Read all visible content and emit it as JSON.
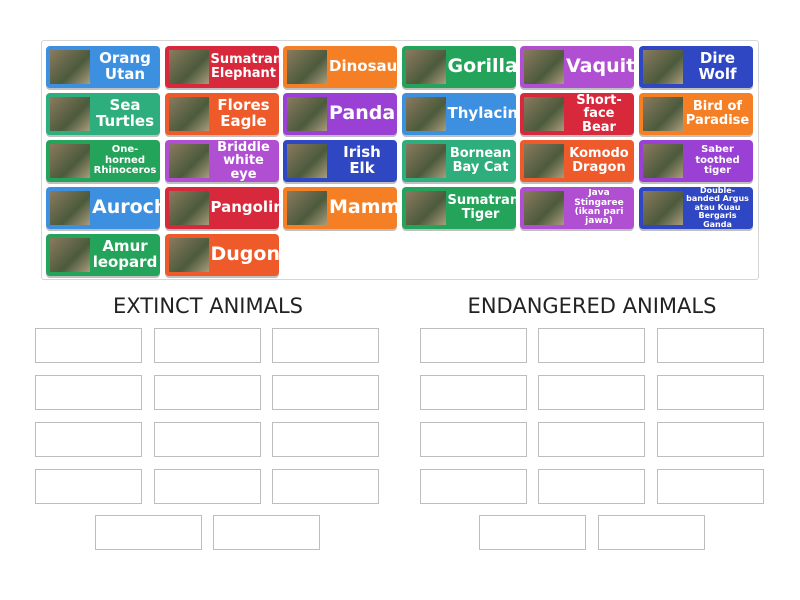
{
  "tiles": [
    {
      "label": "Orang Utan",
      "color": "#3d8fe0"
    },
    {
      "label": "Sumatran Elephant",
      "color": "#d8283c"
    },
    {
      "label": "Dinosaur",
      "color": "#f47f24"
    },
    {
      "label": "Gorilla",
      "color": "#24a35a"
    },
    {
      "label": "Vaquita",
      "color": "#b14fd3"
    },
    {
      "label": "Dire Wolf",
      "color": "#2f47c2"
    },
    {
      "label": "Sea Turtles",
      "color": "#2eae7c"
    },
    {
      "label": "Flores Eagle",
      "color": "#ef5a2a"
    },
    {
      "label": "Panda",
      "color": "#9a40d4"
    },
    {
      "label": "Thylacine",
      "color": "#3d8fe0"
    },
    {
      "label": "Short-face Bear",
      "color": "#d8283c"
    },
    {
      "label": "Bird of Paradise",
      "color": "#f47f24"
    },
    {
      "label": "One-horned Rhinoceros",
      "color": "#24a35a"
    },
    {
      "label": "Briddle white eye",
      "color": "#b14fd3"
    },
    {
      "label": "Irish Elk",
      "color": "#2f47c2"
    },
    {
      "label": "Bornean Bay Cat",
      "color": "#2eae7c"
    },
    {
      "label": "Komodo Dragon",
      "color": "#ef5a2a"
    },
    {
      "label": "Saber toothed tiger",
      "color": "#9a40d4"
    },
    {
      "label": "Aurochs",
      "color": "#3d8fe0"
    },
    {
      "label": "Pangolin",
      "color": "#d8283c"
    },
    {
      "label": "Mammoth",
      "color": "#f47f24"
    },
    {
      "label": "Sumatran Tiger",
      "color": "#24a35a"
    },
    {
      "label": "Java Stingaree (ikan pari jawa)",
      "color": "#b14fd3"
    },
    {
      "label": "Double-banded Argus atau Kuau Bergaris Ganda",
      "color": "#2f47c2"
    },
    {
      "label": "Amur leopard",
      "color": "#24a35a"
    },
    {
      "label": "Dugong",
      "color": "#ef5a2a"
    }
  ],
  "groups": [
    {
      "title": "EXTINCT ANIMALS"
    },
    {
      "title": "ENDANGERED ANIMALS"
    }
  ]
}
